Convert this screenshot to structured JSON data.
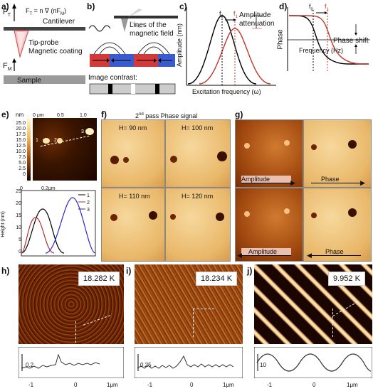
{
  "panels": {
    "a": {
      "label": "a)",
      "ft": "F",
      "ft_sub": "T",
      "eq": "F",
      "eq_sub": "T",
      "eq_rest": " = n ∇ (nF",
      "eq_sub2": "M",
      "eq_end": ")",
      "cantilever": "Cantilever",
      "tip_probe": "Tip-probe",
      "magnetic_coating": "Magnetic coating",
      "fm": "F",
      "fm_sub": "M",
      "sample": "Sample"
    },
    "b": {
      "label": "b)",
      "field_lines": "Lines of the",
      "field_lines2": "magnetic field",
      "image_contrast": "Image contrast:"
    },
    "c": {
      "label": "c)",
      "f0": "f",
      "f0_sub": "0",
      "f1": "f",
      "f1_sub": "1",
      "attenuation": "Amplitude",
      "attenuation2": "attenuation",
      "ylabel": "Amplitude (nm)",
      "xlabel": "Excitation frequency (ω)"
    },
    "d": {
      "label": "d)",
      "f0": "f",
      "f0_sub": "0",
      "f1": "f",
      "f1_sub": "1",
      "phase_shift": "Phase shift",
      "ylabel": "Phase",
      "xlabel": "Frequency (Hz)"
    },
    "e": {
      "label": "e)",
      "unit_nm": "nm",
      "x_ticks": [
        "0 μm",
        "0.5",
        "1.0"
      ],
      "scale_ticks": [
        "25.0",
        "22.5",
        "20.0",
        "17.5",
        "15.0",
        "12.5",
        "10.0",
        "7.5",
        "5.0",
        "2.5",
        "0"
      ],
      "right_ticks": [
        "1",
        "0.5",
        "0"
      ],
      "markers": [
        "1",
        "2",
        "3"
      ],
      "profile_ylabel": "Height (nm)",
      "profile_xlabel": "0.2μm",
      "profile_yticks": [
        "25",
        "20",
        "15",
        "10",
        "5",
        "0"
      ],
      "profile_xtick0": "0",
      "legend": [
        "1",
        "2",
        "3"
      ],
      "legend_colors": [
        "#000000",
        "#b03030",
        "#2a2ac8"
      ]
    },
    "f": {
      "label": "f)",
      "title_pre": "2",
      "title_sup": "nd",
      "title_post": " pass Phase signal",
      "tiles": [
        "H= 90 nm",
        "H= 100 nm",
        "H= 110 nm",
        "H= 120 nm"
      ]
    },
    "g": {
      "label": "g)",
      "amp1": "Amplitude",
      "phase1": "Phase",
      "amp2": "Amplitude",
      "phase2": "Phase"
    },
    "h": {
      "label": "h)",
      "badge": "18.282 K",
      "scale": "0.2",
      "x_ticks": [
        "-1",
        "0",
        "1μm"
      ]
    },
    "i": {
      "label": "i)",
      "badge": "18.234 K",
      "scale": "0.25",
      "x_ticks": [
        "-1",
        "0",
        "1μm"
      ]
    },
    "j": {
      "label": "j)",
      "badge": "9.952 K",
      "scale": "10",
      "x_ticks": [
        "-1",
        "0",
        "1μm"
      ]
    }
  },
  "colors": {
    "red_curve": "#c0392b",
    "black_curve": "#000000",
    "blue_mag": "#3a5bd0",
    "red_mag": "#d23a3a",
    "orange_bg": "#e9b86a",
    "afm_dark": "#3a1500"
  },
  "chart_data": [
    {
      "type": "line",
      "panel": "c",
      "title": "",
      "xlabel": "Excitation frequency (ω)",
      "ylabel": "Amplitude (nm)",
      "series": [
        {
          "color": "#000000",
          "peak_x": "f0",
          "shape": "gaussian"
        },
        {
          "color": "#c0392b",
          "peak_x": "f1",
          "shape": "gaussian"
        }
      ]
    },
    {
      "type": "line",
      "panel": "d",
      "title": "",
      "xlabel": "Frequency (Hz)",
      "ylabel": "Phase",
      "series": [
        {
          "color": "#000000",
          "shape": "sigmoid-down"
        },
        {
          "color": "#c0392b",
          "shape": "sigmoid-down-shifted"
        }
      ]
    },
    {
      "type": "line",
      "panel": "e-profile",
      "title": "",
      "xlabel": "0.2μm",
      "ylabel": "Height (nm)",
      "ylim": [
        0,
        25
      ],
      "series": [
        {
          "name": "1",
          "color": "#000000",
          "peak": 24,
          "shape": "gaussian"
        },
        {
          "name": "2",
          "color": "#b03030",
          "peak": 21,
          "shape": "gaussian"
        },
        {
          "name": "3",
          "color": "#2a2ac8",
          "peak": 26,
          "shape": "gaussian"
        }
      ]
    }
  ]
}
